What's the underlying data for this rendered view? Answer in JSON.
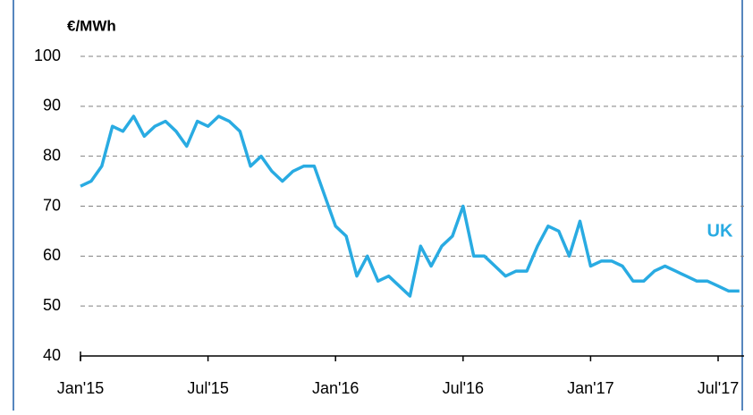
{
  "chart_data": {
    "type": "line",
    "y_label": "€/MWh",
    "annotation": "UK",
    "categories": [
      "Jan'15",
      null,
      null,
      null,
      null,
      null,
      null,
      null,
      null,
      null,
      null,
      null,
      "Jul'15",
      null,
      null,
      null,
      null,
      null,
      null,
      null,
      null,
      null,
      null,
      null,
      "Jan'16",
      null,
      null,
      null,
      null,
      null,
      null,
      null,
      null,
      null,
      null,
      null,
      "Jul'16",
      null,
      null,
      null,
      null,
      null,
      null,
      null,
      null,
      null,
      null,
      null,
      "Jan'17",
      null,
      null,
      null,
      null,
      null,
      null,
      null,
      null,
      null,
      null,
      null,
      "Jul'17",
      null,
      null
    ],
    "series": [
      {
        "name": "UK",
        "color": "#29abe2",
        "values": [
          74,
          75,
          78,
          86,
          85,
          88,
          84,
          86,
          87,
          85,
          82,
          87,
          86,
          88,
          87,
          85,
          78,
          80,
          77,
          75,
          77,
          78,
          78,
          72,
          66,
          64,
          56,
          60,
          55,
          56,
          54,
          52,
          62,
          58,
          62,
          64,
          70,
          60,
          60,
          58,
          56,
          57,
          57,
          62,
          66,
          65,
          60,
          67,
          58,
          59,
          59,
          58,
          55,
          55,
          57,
          58,
          57,
          56,
          55,
          55,
          54,
          53,
          53
        ]
      }
    ],
    "ylim": [
      40,
      100
    ],
    "yticks": [
      40,
      50,
      60,
      70,
      80,
      90,
      100
    ],
    "grid": true
  }
}
